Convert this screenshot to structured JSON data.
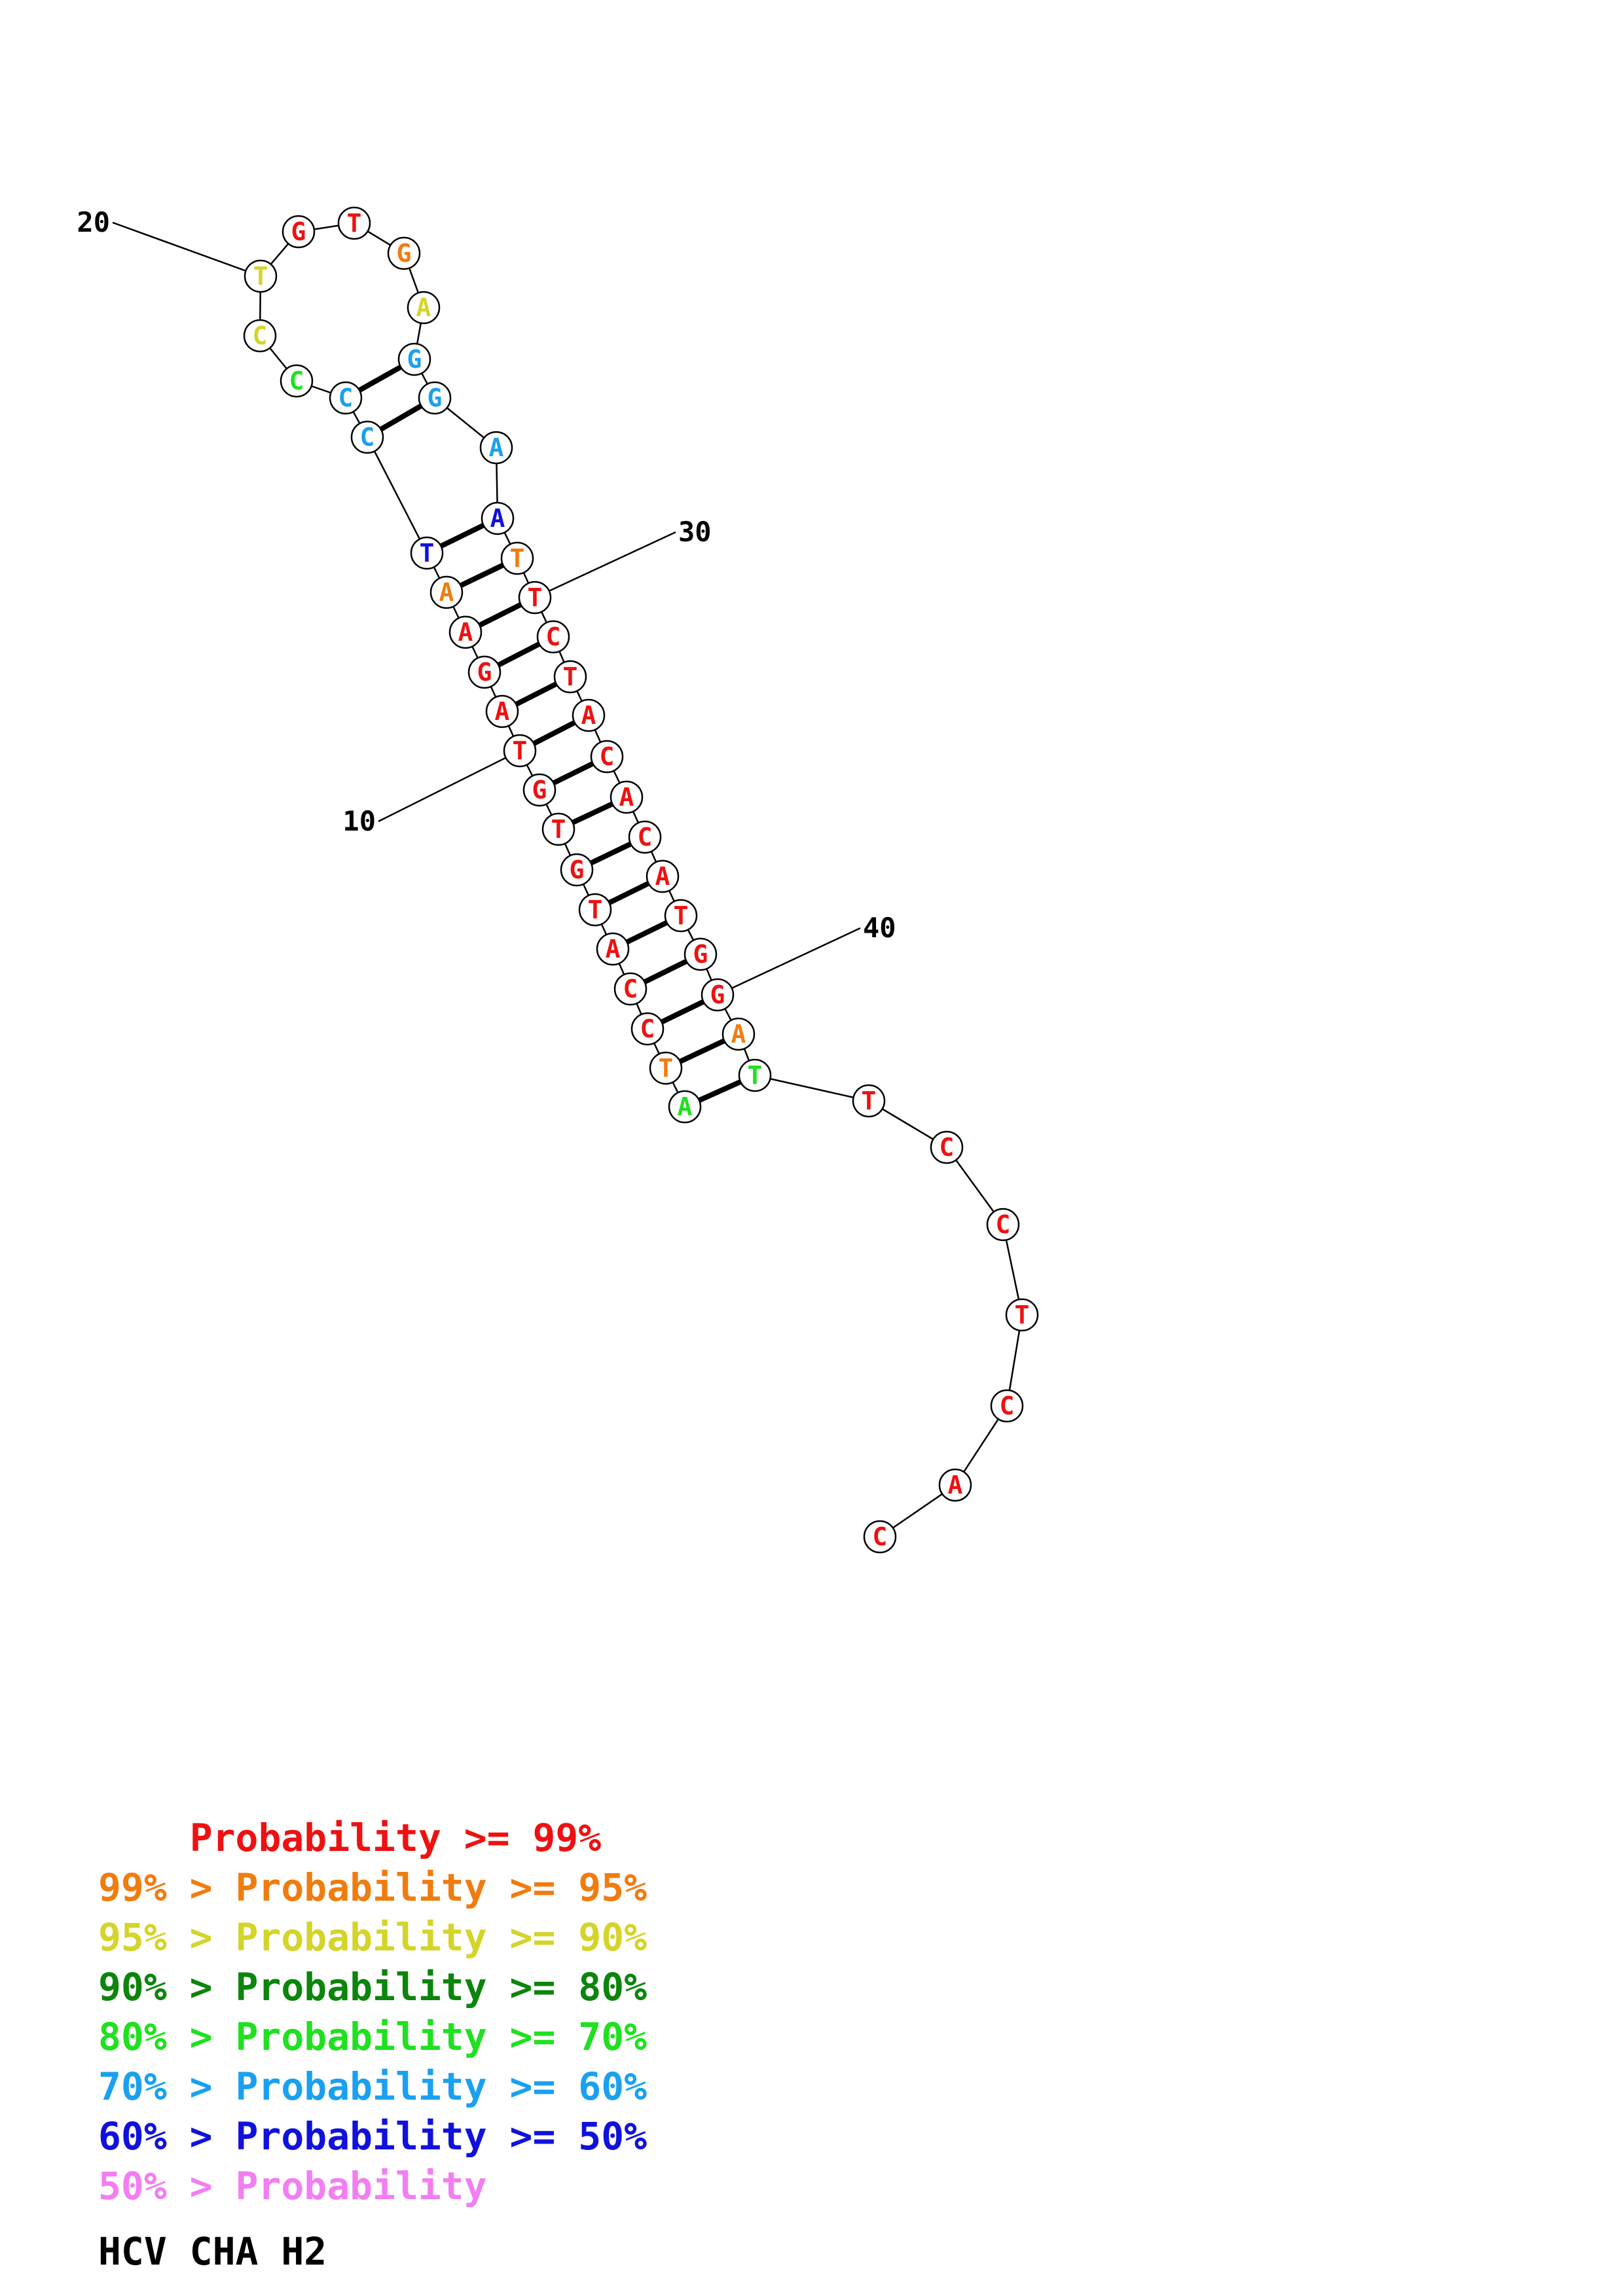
{
  "sequence": [
    {
      "n": 1,
      "base": "A",
      "color": "#20e020"
    },
    {
      "n": 2,
      "base": "T",
      "color": "#f07c10"
    },
    {
      "n": 3,
      "base": "C",
      "color": "#ee1111"
    },
    {
      "n": 4,
      "base": "C",
      "color": "#ee1111"
    },
    {
      "n": 5,
      "base": "A",
      "color": "#ee1111"
    },
    {
      "n": 6,
      "base": "T",
      "color": "#ee1111"
    },
    {
      "n": 7,
      "base": "G",
      "color": "#ee1111"
    },
    {
      "n": 8,
      "base": "T",
      "color": "#ee1111"
    },
    {
      "n": 9,
      "base": "G",
      "color": "#ee1111"
    },
    {
      "n": 10,
      "base": "T",
      "color": "#ee1111"
    },
    {
      "n": 11,
      "base": "A",
      "color": "#ee1111"
    },
    {
      "n": 12,
      "base": "G",
      "color": "#ee1111"
    },
    {
      "n": 13,
      "base": "A",
      "color": "#ee1111"
    },
    {
      "n": 14,
      "base": "A",
      "color": "#f07c10"
    },
    {
      "n": 15,
      "base": "T",
      "color": "#1111dd"
    },
    {
      "n": 16,
      "base": "C",
      "color": "#1aa0f0"
    },
    {
      "n": 17,
      "base": "C",
      "color": "#1aa0f0"
    },
    {
      "n": 18,
      "base": "C",
      "color": "#20e020"
    },
    {
      "n": 19,
      "base": "C",
      "color": "#d4d42a"
    },
    {
      "n": 20,
      "base": "T",
      "color": "#d4d42a"
    },
    {
      "n": 21,
      "base": "G",
      "color": "#ee1111"
    },
    {
      "n": 22,
      "base": "T",
      "color": "#ee1111"
    },
    {
      "n": 23,
      "base": "G",
      "color": "#f07c10"
    },
    {
      "n": 24,
      "base": "A",
      "color": "#d4d42a"
    },
    {
      "n": 25,
      "base": "G",
      "color": "#1aa0f0"
    },
    {
      "n": 26,
      "base": "G",
      "color": "#1aa0f0"
    },
    {
      "n": 27,
      "base": "A",
      "color": "#1aa0f0"
    },
    {
      "n": 28,
      "base": "A",
      "color": "#1111dd"
    },
    {
      "n": 29,
      "base": "T",
      "color": "#f07c10"
    },
    {
      "n": 30,
      "base": "T",
      "color": "#ee1111"
    },
    {
      "n": 31,
      "base": "C",
      "color": "#ee1111"
    },
    {
      "n": 32,
      "base": "T",
      "color": "#ee1111"
    },
    {
      "n": 33,
      "base": "A",
      "color": "#ee1111"
    },
    {
      "n": 34,
      "base": "C",
      "color": "#ee1111"
    },
    {
      "n": 35,
      "base": "A",
      "color": "#ee1111"
    },
    {
      "n": 36,
      "base": "C",
      "color": "#ee1111"
    },
    {
      "n": 37,
      "base": "A",
      "color": "#ee1111"
    },
    {
      "n": 38,
      "base": "T",
      "color": "#ee1111"
    },
    {
      "n": 39,
      "base": "G",
      "color": "#ee1111"
    },
    {
      "n": 40,
      "base": "G",
      "color": "#ee1111"
    },
    {
      "n": 41,
      "base": "A",
      "color": "#f07c10"
    },
    {
      "n": 42,
      "base": "T",
      "color": "#20e020"
    },
    {
      "n": 43,
      "base": "T",
      "color": "#ee1111"
    },
    {
      "n": 44,
      "base": "C",
      "color": "#ee1111"
    },
    {
      "n": 45,
      "base": "C",
      "color": "#ee1111"
    },
    {
      "n": 46,
      "base": "T",
      "color": "#ee1111"
    },
    {
      "n": 47,
      "base": "C",
      "color": "#ee1111"
    },
    {
      "n": 48,
      "base": "A",
      "color": "#ee1111"
    },
    {
      "n": 49,
      "base": "C",
      "color": "#ee1111"
    }
  ],
  "pairs": [
    [
      1,
      42
    ],
    [
      2,
      41
    ],
    [
      3,
      40
    ],
    [
      4,
      39
    ],
    [
      5,
      38
    ],
    [
      6,
      37
    ],
    [
      7,
      36
    ],
    [
      8,
      35
    ],
    [
      9,
      34
    ],
    [
      10,
      33
    ],
    [
      11,
      32
    ],
    [
      12,
      31
    ],
    [
      13,
      30
    ],
    [
      14,
      29
    ],
    [
      15,
      28
    ],
    [
      16,
      26
    ],
    [
      17,
      25
    ]
  ],
  "position_labels": [
    {
      "n": 10,
      "text": "10"
    },
    {
      "n": 20,
      "text": "20"
    },
    {
      "n": 30,
      "text": "30"
    },
    {
      "n": 40,
      "text": "40"
    }
  ],
  "legend": [
    {
      "prefix": "    ",
      "range": "Probability >= 99%",
      "prefix_color": "#ee1111",
      "color": "#ee1111"
    },
    {
      "prefix": "99% > ",
      "range": "Probability >= 95%",
      "color": "#f07c10"
    },
    {
      "prefix": "95% > ",
      "range": "Probability >= 90%",
      "color": "#d4d42a"
    },
    {
      "prefix": "90% > ",
      "range": "Probability >= 80%",
      "color": "#0b850b"
    },
    {
      "prefix": "80% > ",
      "range": "Probability >= 70%",
      "color": "#20e020"
    },
    {
      "prefix": "70% > ",
      "range": "Probability >= 60%",
      "color": "#1aa0f0"
    },
    {
      "prefix": "60% > ",
      "range": "Probability >= 50%",
      "color": "#1111dd"
    },
    {
      "prefix": "50% > ",
      "range": "Probability",
      "color": "#f27ef2"
    }
  ],
  "caption": "HCV CHA H2"
}
